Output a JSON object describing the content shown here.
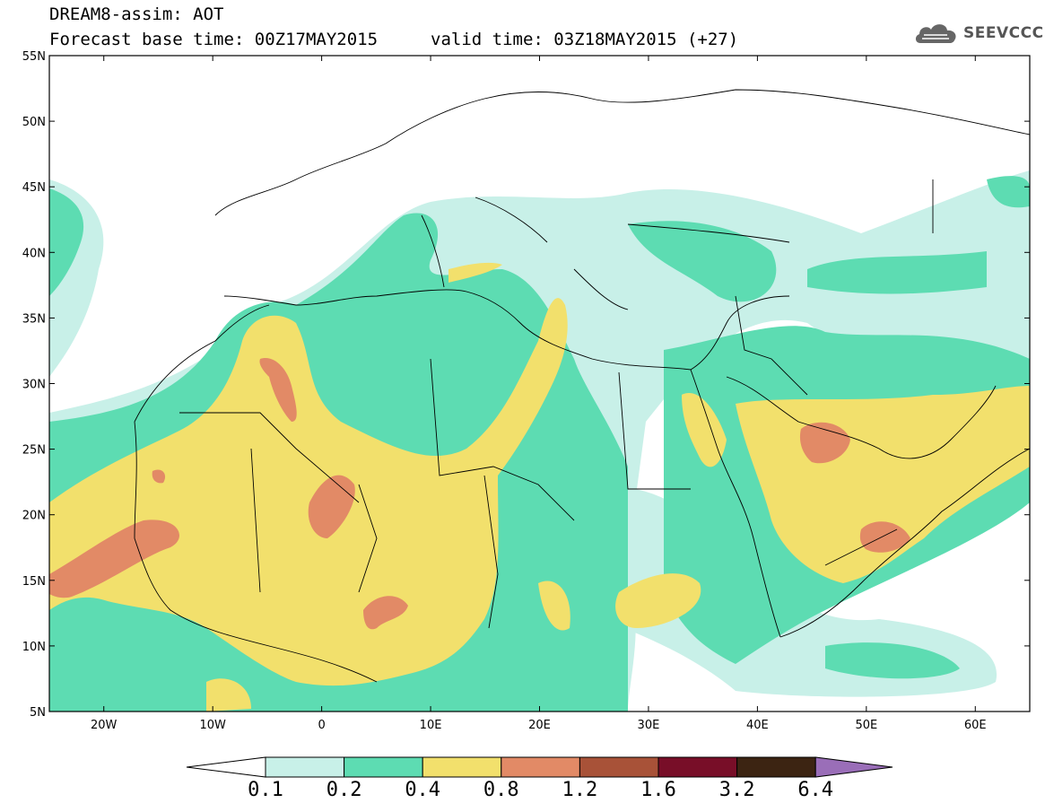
{
  "header": {
    "title": "DREAM8-assim: AOT",
    "base_time": "Forecast base time: 00Z17MAY2015",
    "valid_time": "valid time: 03Z18MAY2015 (+27)",
    "logo_text": "SEEVCCC",
    "logo_icon": "cloud-icon"
  },
  "map": {
    "lat_labels": [
      "55N",
      "50N",
      "45N",
      "40N",
      "35N",
      "30N",
      "25N",
      "20N",
      "15N",
      "10N",
      "5N"
    ],
    "lon_labels": [
      "20W",
      "10W",
      "0",
      "10E",
      "20E",
      "30E",
      "40E",
      "50E",
      "60E"
    ],
    "lat_range": [
      5,
      55
    ],
    "lon_range": [
      -25,
      65
    ]
  },
  "colorbar": {
    "labels": [
      "0.1",
      "0.2",
      "0.4",
      "0.8",
      "1.2",
      "1.6",
      "3.2",
      "6.4"
    ],
    "colors": [
      "#c8f0e8",
      "#5ddcb2",
      "#f2e06c",
      "#e28a66",
      "#a85238",
      "#780e28",
      "#3c2412",
      "#9a6eb8"
    ],
    "under_color": "#ffffff"
  }
}
